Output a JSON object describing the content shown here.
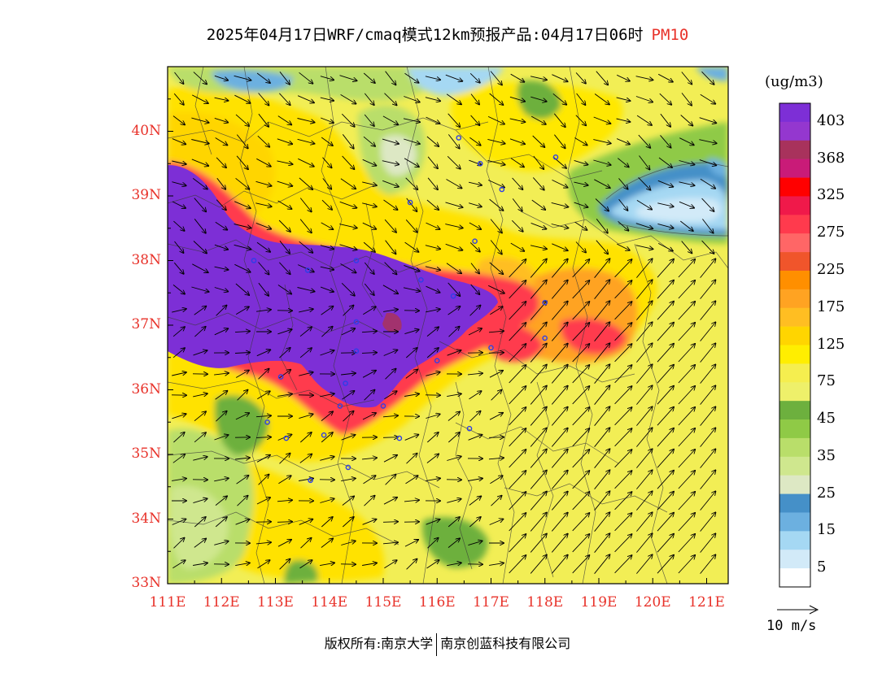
{
  "title": {
    "main": "2025年04月17日WRF/cmaq模式12km预报产品:04月17日06时",
    "pollutant": "PM10"
  },
  "colors": {
    "accent_red": "#e8322a"
  },
  "axes": {
    "lat_labels": [
      "40N",
      "39N",
      "38N",
      "37N",
      "36N",
      "35N",
      "34N",
      "33N"
    ],
    "lon_labels": [
      "111E",
      "112E",
      "113E",
      "114E",
      "115E",
      "116E",
      "117E",
      "118E",
      "119E",
      "120E",
      "121E"
    ],
    "lat_range": [
      33,
      41
    ],
    "lon_range": [
      111,
      121.4
    ]
  },
  "colorbar": {
    "unit": "(ug/m3)",
    "labels": [
      "403",
      "368",
      "325",
      "275",
      "225",
      "175",
      "125",
      "75",
      "45",
      "35",
      "25",
      "15",
      "5"
    ],
    "colors_top_to_bottom": [
      "#7d2fd6",
      "#9437cf",
      "#a8325c",
      "#c91b78",
      "#ff0000",
      "#f0194a",
      "#ff3a4d",
      "#ff6666",
      "#f0552b",
      "#ff8f00",
      "#ffa322",
      "#ffbe22",
      "#ffd500",
      "#ffee00",
      "#f5ee4f",
      "#eef06a",
      "#6db03e",
      "#8fca46",
      "#b9de6a",
      "#cfe78e",
      "#dde8c4",
      "#4590c8",
      "#6cb0e0",
      "#a5d8f3",
      "#d2eaf8",
      "#ffffff"
    ]
  },
  "vector_scale": {
    "label": "10 m/s"
  },
  "footer": {
    "left": "版权所有:南京大学",
    "right": "南京创蓝科技有限公司"
  },
  "cities": [
    {
      "lon": 116.4,
      "lat": 39.9
    },
    {
      "lon": 117.2,
      "lat": 39.1
    },
    {
      "lon": 118.2,
      "lat": 39.6
    },
    {
      "lon": 114.5,
      "lat": 38.0
    },
    {
      "lon": 115.5,
      "lat": 38.9
    },
    {
      "lon": 116.8,
      "lat": 39.5
    },
    {
      "lon": 112.6,
      "lat": 38.0
    },
    {
      "lon": 113.6,
      "lat": 37.85
    },
    {
      "lon": 117.0,
      "lat": 36.65
    },
    {
      "lon": 118.0,
      "lat": 36.8
    },
    {
      "lon": 118.0,
      "lat": 37.35
    },
    {
      "lon": 116.3,
      "lat": 37.45
    },
    {
      "lon": 115.7,
      "lat": 37.7
    },
    {
      "lon": 116.0,
      "lat": 36.45
    },
    {
      "lon": 114.5,
      "lat": 36.6
    },
    {
      "lon": 114.3,
      "lat": 36.1
    },
    {
      "lon": 114.2,
      "lat": 35.75
    },
    {
      "lon": 115.0,
      "lat": 35.75
    },
    {
      "lon": 113.1,
      "lat": 36.2
    },
    {
      "lon": 112.85,
      "lat": 35.5
    },
    {
      "lon": 113.2,
      "lat": 35.25
    },
    {
      "lon": 113.9,
      "lat": 35.3
    },
    {
      "lon": 115.3,
      "lat": 35.25
    },
    {
      "lon": 116.6,
      "lat": 35.4
    },
    {
      "lon": 114.35,
      "lat": 34.8
    },
    {
      "lon": 113.65,
      "lat": 34.6
    },
    {
      "lon": 114.5,
      "lat": 37.05
    },
    {
      "lon": 116.7,
      "lat": 38.3
    }
  ]
}
